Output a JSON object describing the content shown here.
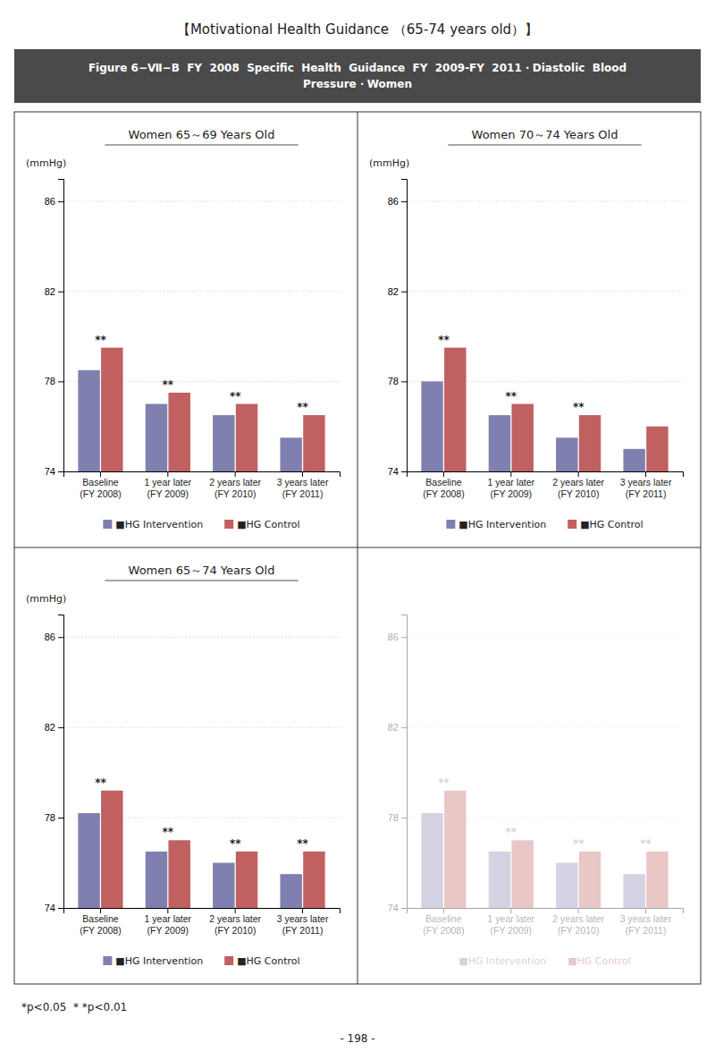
{
  "title": "【Motivational Health Guidance （65-74 years old）】",
  "subtitle": "Figure 6−Ⅶ−B  FY  2008  Specific  Health  Guidance  FY  2009-FY  2011・Diastolic  Blood\nPressure・Women",
  "annotations": [
    "*p<0.05  * *p<0.01",
    "- 198 -"
  ],
  "chart_data": [
    {
      "type": "bar",
      "title": "Women 65～69 Years Old",
      "ylabel": "(mmHg)",
      "categories": [
        "Baseline\n(FY 2008)",
        "1 year later\n(FY 2009)",
        "2 years later\n(FY 2010)",
        "3 years later\n(FY 2011)"
      ],
      "series": [
        {
          "name": "■HG Intervention",
          "color": "#8080b0",
          "values": [
            78.5,
            77.0,
            76.5,
            75.5
          ]
        },
        {
          "name": "■HG Control",
          "color": "#c06060",
          "values": [
            79.5,
            77.5,
            77.0,
            76.5
          ]
        }
      ],
      "annotations": [
        "**",
        "**",
        "**",
        "**"
      ],
      "ylim": [
        74,
        87
      ],
      "yticks": [
        74,
        78,
        82,
        86
      ],
      "grid": true
    },
    {
      "type": "bar",
      "title": "Women 70～74 Years Old",
      "ylabel": "(mmHg)",
      "categories": [
        "Baseline\n(FY 2008)",
        "1 year later\n(FY 2009)",
        "2 years later\n(FY 2010)",
        "3 years later\n(FY 2011)"
      ],
      "series": [
        {
          "name": "■HG Intervention",
          "color": "#8080b0",
          "values": [
            78.0,
            76.5,
            75.5,
            75.0
          ]
        },
        {
          "name": "■HG Control",
          "color": "#c06060",
          "values": [
            79.5,
            77.0,
            76.5,
            76.0
          ]
        }
      ],
      "annotations": [
        "**",
        "**",
        "**",
        null
      ],
      "ylim": [
        74,
        87
      ],
      "yticks": [
        74,
        78,
        82,
        86
      ],
      "grid": true
    },
    {
      "type": "bar",
      "title": "Women 65～74 Years Old",
      "ylabel": "(mmHg)",
      "categories": [
        "Baseline\n(FY 2008)",
        "1 year later\n(FY 2009)",
        "2 years later\n(FY 2010)",
        "3 years later\n(FY 2011)"
      ],
      "series": [
        {
          "name": "■HG Intervention",
          "color": "#8080b0",
          "values": [
            78.2,
            76.5,
            76.0,
            75.5
          ]
        },
        {
          "name": "■HG Control",
          "color": "#c06060",
          "values": [
            79.2,
            77.0,
            76.5,
            76.5
          ]
        }
      ],
      "annotations": [
        "**",
        "**",
        "**",
        "**"
      ],
      "ylim": [
        74,
        87
      ],
      "yticks": [
        74,
        78,
        82,
        86
      ],
      "grid": true
    },
    {
      "type": "bar",
      "categories": [
        "Baseline\n(FY 2008)",
        "1 year later\n(FY 2009)",
        "2 years later\n(FY 2010)",
        "3 years later\n(FY 2011)"
      ],
      "series": [
        {
          "name": "■HG Intervention",
          "color": "#8080b0",
          "values": [
            78.2,
            76.5,
            76.0,
            75.5
          ]
        },
        {
          "name": "■HG Control",
          "color": "#c06060",
          "values": [
            79.2,
            77.0,
            76.5,
            76.5
          ]
        }
      ],
      "annotations": [
        "**",
        "**",
        "**",
        "**"
      ],
      "ylim": [
        74,
        87
      ],
      "yticks": [
        74,
        78,
        82,
        86
      ],
      "grid": true
    }
  ]
}
